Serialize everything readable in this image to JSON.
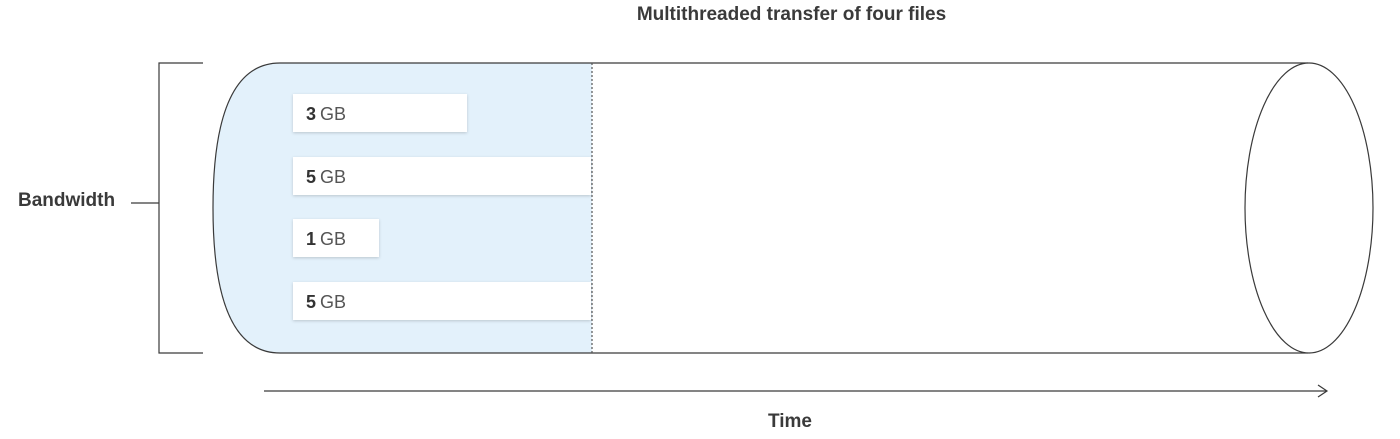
{
  "diagram": {
    "title": "Multithreaded transfer of four files",
    "y_label": "Bandwidth",
    "x_label": "Time",
    "colors": {
      "transferred_fill": "#e3f1fb",
      "outline": "#3a3a3a",
      "divider": "#555555"
    },
    "files": [
      {
        "size": "3",
        "unit": "GB"
      },
      {
        "size": "5",
        "unit": "GB"
      },
      {
        "size": "1",
        "unit": "GB"
      },
      {
        "size": "5",
        "unit": "GB"
      }
    ]
  }
}
